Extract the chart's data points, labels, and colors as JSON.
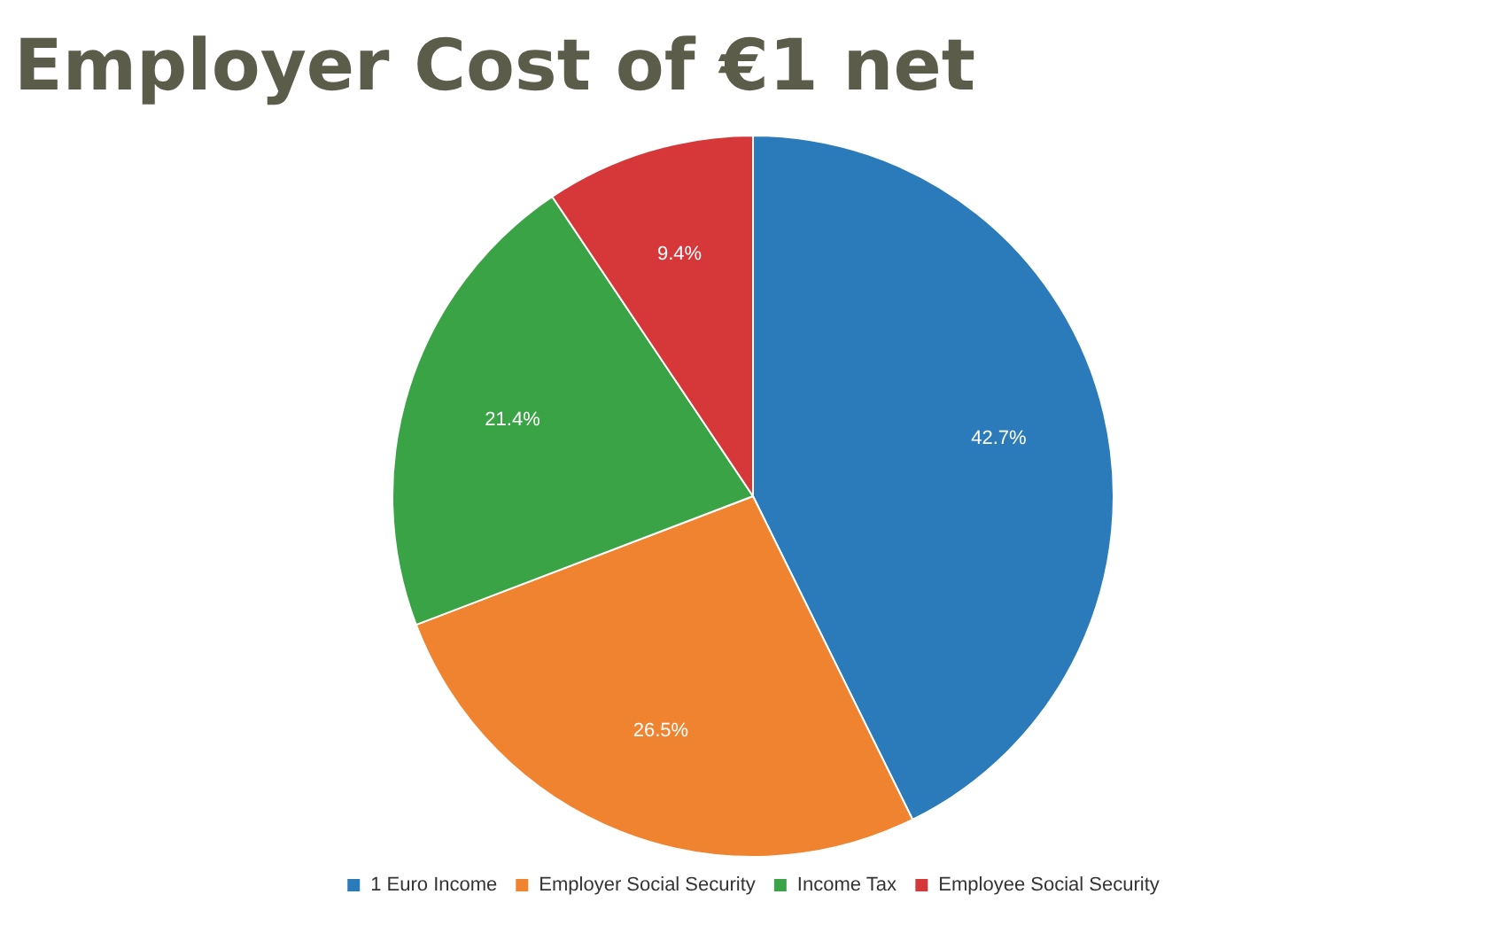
{
  "chart_data": {
    "type": "pie",
    "title": "Employer Cost of €1 net",
    "categories": [
      "1 Euro Income",
      "Employer Social Security",
      "Income Tax",
      "Employee Social Security"
    ],
    "values": [
      42.7,
      26.5,
      21.4,
      9.4
    ],
    "colors": [
      "#2b7bba",
      "#ef832f",
      "#3aa345",
      "#d6383a"
    ],
    "value_labels": [
      "42.7%",
      "26.5%",
      "21.4%",
      "9.4%"
    ],
    "legend": "bottom"
  }
}
